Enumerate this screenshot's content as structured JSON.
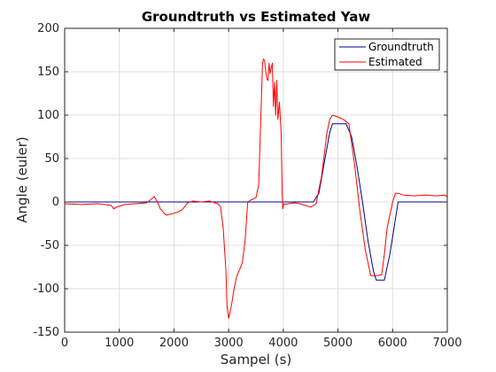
{
  "chart_data": {
    "type": "line",
    "title": "Groundtruth vs Estimated Yaw",
    "xlabel": "Sampel (s)",
    "ylabel": "Angle (euler)",
    "xlim": [
      0,
      7000
    ],
    "ylim": [
      -150,
      200
    ],
    "xticks": [
      0,
      1000,
      2000,
      3000,
      4000,
      5000,
      6000,
      7000
    ],
    "yticks": [
      -150,
      -100,
      -50,
      0,
      50,
      100,
      150,
      200
    ],
    "xtick_labels": [
      "0",
      "1000",
      "2000",
      "3000",
      "4000",
      "5000",
      "6000",
      "7000"
    ],
    "ytick_labels": [
      "-150",
      "-100",
      "-50",
      "0",
      "50",
      "100",
      "150",
      "200"
    ],
    "grid": true,
    "legend": {
      "position": "top-right",
      "entries": [
        "Groundtruth",
        "Estimated"
      ]
    },
    "series": [
      {
        "name": "Groundtruth",
        "color": "#00008b",
        "x": [
          0,
          4550,
          4650,
          4750,
          4850,
          4900,
          5150,
          5250,
          5350,
          5450,
          5550,
          5650,
          5700,
          5850,
          5950,
          6050,
          6100,
          7000
        ],
        "y": [
          0,
          0,
          10,
          45,
          80,
          90,
          90,
          75,
          40,
          0,
          -45,
          -80,
          -90,
          -90,
          -60,
          -20,
          0,
          0
        ]
      },
      {
        "name": "Estimated",
        "color": "#ff0000",
        "x": [
          0,
          300,
          600,
          850,
          900,
          950,
          1100,
          1300,
          1500,
          1600,
          1640,
          1700,
          1750,
          1850,
          1950,
          2050,
          2150,
          2250,
          2350,
          2500,
          2650,
          2800,
          2850,
          2900,
          2950,
          2970,
          3000,
          3050,
          3100,
          3150,
          3200,
          3250,
          3300,
          3350,
          3400,
          3500,
          3550,
          3600,
          3620,
          3640,
          3660,
          3680,
          3700,
          3720,
          3740,
          3760,
          3780,
          3800,
          3820,
          3840,
          3860,
          3880,
          3900,
          3930,
          3960,
          3980,
          3990,
          4000,
          4010,
          4030,
          4100,
          4200,
          4300,
          4400,
          4500,
          4600,
          4700,
          4800,
          4850,
          4900,
          5000,
          5100,
          5200,
          5300,
          5400,
          5500,
          5600,
          5700,
          5800,
          5850,
          5900,
          6000,
          6050,
          6100,
          6200,
          6400,
          6600,
          6800,
          6950,
          7000
        ],
        "y": [
          -2,
          -3,
          -2,
          -4,
          -8,
          -6,
          -3,
          -2,
          -1,
          4,
          6,
          0,
          -8,
          -15,
          -14,
          -12,
          -9,
          -1,
          1,
          0,
          1,
          -2,
          -5,
          -30,
          -80,
          -120,
          -134,
          -120,
          -100,
          -85,
          -78,
          -70,
          -45,
          0,
          2,
          5,
          20,
          120,
          160,
          165,
          162,
          150,
          142,
          140,
          160,
          148,
          155,
          160,
          110,
          138,
          100,
          140,
          95,
          115,
          80,
          10,
          -8,
          -5,
          -2,
          -3,
          -2,
          -1,
          -2,
          -4,
          -6,
          -2,
          30,
          80,
          95,
          100,
          98,
          95,
          90,
          45,
          -10,
          -55,
          -85,
          -85,
          -84,
          -60,
          -30,
          0,
          10,
          10,
          8,
          7,
          8,
          7,
          8,
          6
        ]
      }
    ]
  }
}
